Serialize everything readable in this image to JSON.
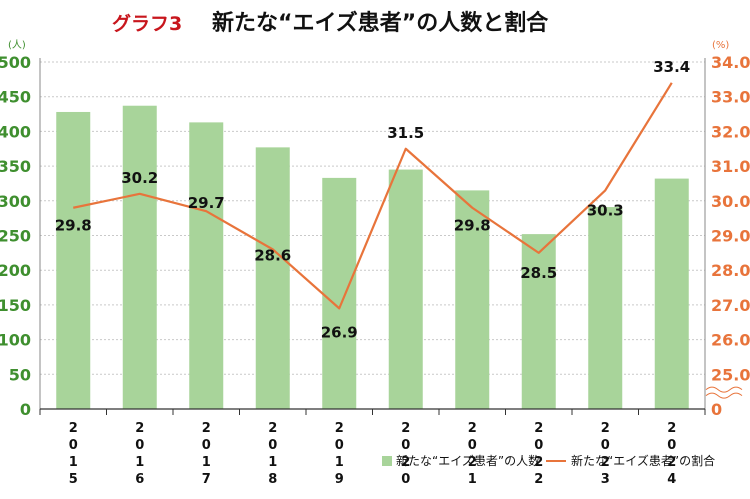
{
  "title_label": "グラフ3",
  "title": "新たな“エイズ患者”の人数と割合",
  "chart_data": {
    "type": "bar",
    "categories": [
      "2015",
      "2016",
      "2017",
      "2018",
      "2019",
      "2020",
      "2021",
      "2022",
      "2023",
      "2024"
    ],
    "series": [
      {
        "name": "新たな“エイズ患者”の人数",
        "type": "bar",
        "axis": "left",
        "color": "#a8d49a",
        "values": [
          428,
          437,
          413,
          377,
          333,
          345,
          315,
          252,
          291,
          332
        ]
      },
      {
        "name": "新たな“エイズ患者”の割合",
        "type": "line",
        "axis": "right",
        "color": "#e8743b",
        "values": [
          29.8,
          30.2,
          29.7,
          28.6,
          26.9,
          31.5,
          29.8,
          28.5,
          30.3,
          33.4
        ],
        "labels": [
          "29.8",
          "30.2",
          "29.7",
          "28.6",
          "26.9",
          "31.5",
          "29.8",
          "28.5",
          "30.3",
          "33.4"
        ]
      }
    ],
    "y_left": {
      "unit": "(人)",
      "range": [
        0,
        500
      ],
      "ticks": [
        "0",
        "50",
        "100",
        "150",
        "200",
        "250",
        "300",
        "350",
        "400",
        "450",
        "500"
      ],
      "color": "#3f8f2f"
    },
    "y_right": {
      "unit": "(%)",
      "range": [
        25.0,
        34.0
      ],
      "axis_break": true,
      "ticks": [
        "0",
        "25.0",
        "26.0",
        "27.0",
        "28.0",
        "29.0",
        "30.0",
        "31.0",
        "32.0",
        "33.0",
        "34.0"
      ],
      "color": "#e8743b"
    },
    "grid": "horizontal",
    "legend_position": "bottom-right"
  }
}
